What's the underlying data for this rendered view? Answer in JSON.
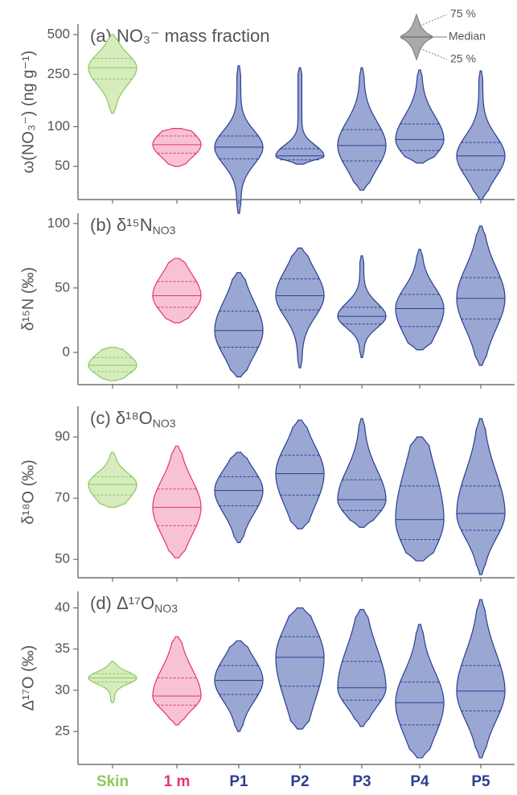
{
  "chart_data": [
    {
      "type": "violin",
      "title": "(a) NO₃⁻ mass fraction",
      "ylabel": "ω(NO₃⁻) (ng g⁻¹)",
      "scale": "log",
      "ylim": [
        28,
        600
      ],
      "yticks": [
        50,
        100,
        250,
        500
      ],
      "key": {
        "q3": "75 %",
        "median": "Median",
        "q1": "25 %"
      },
      "violins": [
        {
          "min": 126,
          "q1": 230,
          "median": 280,
          "q3": 330,
          "max": 500,
          "color": "#8cc860",
          "fill": "#d6ecbd"
        },
        {
          "min": 50,
          "q1": 63,
          "median": 73,
          "q3": 85,
          "max": 97,
          "color": "#e8336b",
          "fill": "#f7c3d3"
        },
        {
          "min": 22,
          "q1": 57,
          "median": 70,
          "q3": 85,
          "max": 290,
          "color": "#2b3e91",
          "fill": "#9aa7d3"
        },
        {
          "min": 52,
          "q1": 56,
          "median": 60,
          "q3": 68,
          "max": 280,
          "color": "#2b3e91",
          "fill": "#9aa7d3"
        },
        {
          "min": 33,
          "q1": 55,
          "median": 72,
          "q3": 95,
          "max": 280,
          "color": "#2b3e91",
          "fill": "#9aa7d3"
        },
        {
          "min": 53,
          "q1": 66,
          "median": 80,
          "q3": 105,
          "max": 270,
          "color": "#2b3e91",
          "fill": "#9aa7d3"
        },
        {
          "min": 28,
          "q1": 47,
          "median": 60,
          "q3": 76,
          "max": 265,
          "color": "#2b3e91",
          "fill": "#9aa7d3"
        }
      ]
    },
    {
      "type": "violin",
      "title": "(b) δ¹⁵N",
      "title_sub": "NO3",
      "ylabel": "δ¹⁵N (‰)",
      "ylim": [
        -25,
        108
      ],
      "yticks": [
        0,
        50,
        100
      ],
      "violins": [
        {
          "min": -22,
          "q1": -15,
          "median": -10,
          "q3": -4,
          "max": 4,
          "color": "#8cc860",
          "fill": "#d6ecbd"
        },
        {
          "min": 23,
          "q1": 35,
          "median": 44,
          "q3": 55,
          "max": 73,
          "color": "#e8336b",
          "fill": "#f7c3d3"
        },
        {
          "min": -19,
          "q1": 4,
          "median": 17,
          "q3": 32,
          "max": 62,
          "color": "#2b3e91",
          "fill": "#9aa7d3"
        },
        {
          "min": -12,
          "q1": 33,
          "median": 44,
          "q3": 57,
          "max": 81,
          "color": "#2b3e91",
          "fill": "#9aa7d3"
        },
        {
          "min": -4,
          "q1": 22,
          "median": 28,
          "q3": 35,
          "max": 75,
          "color": "#2b3e91",
          "fill": "#9aa7d3"
        },
        {
          "min": 2,
          "q1": 20,
          "median": 34,
          "q3": 45,
          "max": 80,
          "color": "#2b3e91",
          "fill": "#9aa7d3"
        },
        {
          "min": -10,
          "q1": 26,
          "median": 42,
          "q3": 58,
          "max": 98,
          "color": "#2b3e91",
          "fill": "#9aa7d3"
        }
      ]
    },
    {
      "type": "violin",
      "title": "(c) δ¹⁸O",
      "title_sub": "NO3",
      "ylabel": "δ¹⁸O (‰)",
      "ylim": [
        44,
        100
      ],
      "yticks": [
        50,
        70,
        90
      ],
      "violins": [
        {
          "min": 67,
          "q1": 71,
          "median": 74.5,
          "q3": 77,
          "max": 85,
          "color": "#8cc860",
          "fill": "#d6ecbd"
        },
        {
          "min": 50.5,
          "q1": 61,
          "median": 67,
          "q3": 73,
          "max": 87,
          "color": "#e8336b",
          "fill": "#f7c3d3"
        },
        {
          "min": 55.5,
          "q1": 67.5,
          "median": 72.5,
          "q3": 77,
          "max": 85,
          "color": "#2b3e91",
          "fill": "#9aa7d3"
        },
        {
          "min": 60,
          "q1": 71,
          "median": 78,
          "q3": 84,
          "max": 95.5,
          "color": "#2b3e91",
          "fill": "#9aa7d3"
        },
        {
          "min": 60.5,
          "q1": 66,
          "median": 69.5,
          "q3": 76,
          "max": 96,
          "color": "#2b3e91",
          "fill": "#9aa7d3"
        },
        {
          "min": 49.5,
          "q1": 56.5,
          "median": 63,
          "q3": 74,
          "max": 90,
          "color": "#2b3e91",
          "fill": "#9aa7d3"
        },
        {
          "min": 45,
          "q1": 59.5,
          "median": 65,
          "q3": 74,
          "max": 96,
          "color": "#2b3e91",
          "fill": "#9aa7d3"
        }
      ]
    },
    {
      "type": "violin",
      "title": "(d) Δ¹⁷O",
      "title_sub": "NO3",
      "ylabel": "Δ¹⁷O (‰)",
      "ylim": [
        21,
        42
      ],
      "yticks": [
        25,
        30,
        35,
        40
      ],
      "categories": [
        "Skin",
        "1 m",
        "P1",
        "P2",
        "P3",
        "P4",
        "P5"
      ],
      "violins": [
        {
          "min": 28.5,
          "q1": 31,
          "median": 31.5,
          "q3": 32,
          "max": 33.5,
          "color": "#8cc860",
          "fill": "#d6ecbd"
        },
        {
          "min": 25.8,
          "q1": 28.2,
          "median": 29.3,
          "q3": 31.5,
          "max": 36.5,
          "color": "#e8336b",
          "fill": "#f7c3d3"
        },
        {
          "min": 25,
          "q1": 29.5,
          "median": 31.2,
          "q3": 33,
          "max": 36,
          "color": "#2b3e91",
          "fill": "#9aa7d3"
        },
        {
          "min": 25.3,
          "q1": 30.5,
          "median": 34,
          "q3": 36.5,
          "max": 40,
          "color": "#2b3e91",
          "fill": "#9aa7d3"
        },
        {
          "min": 25.6,
          "q1": 28.8,
          "median": 30.3,
          "q3": 33.5,
          "max": 39.8,
          "color": "#2b3e91",
          "fill": "#9aa7d3"
        },
        {
          "min": 21.8,
          "q1": 25.8,
          "median": 28.5,
          "q3": 31,
          "max": 38,
          "color": "#2b3e91",
          "fill": "#9aa7d3"
        },
        {
          "min": 21.8,
          "q1": 27.5,
          "median": 29.9,
          "q3": 33,
          "max": 41,
          "color": "#2b3e91",
          "fill": "#9aa7d3"
        }
      ]
    }
  ]
}
